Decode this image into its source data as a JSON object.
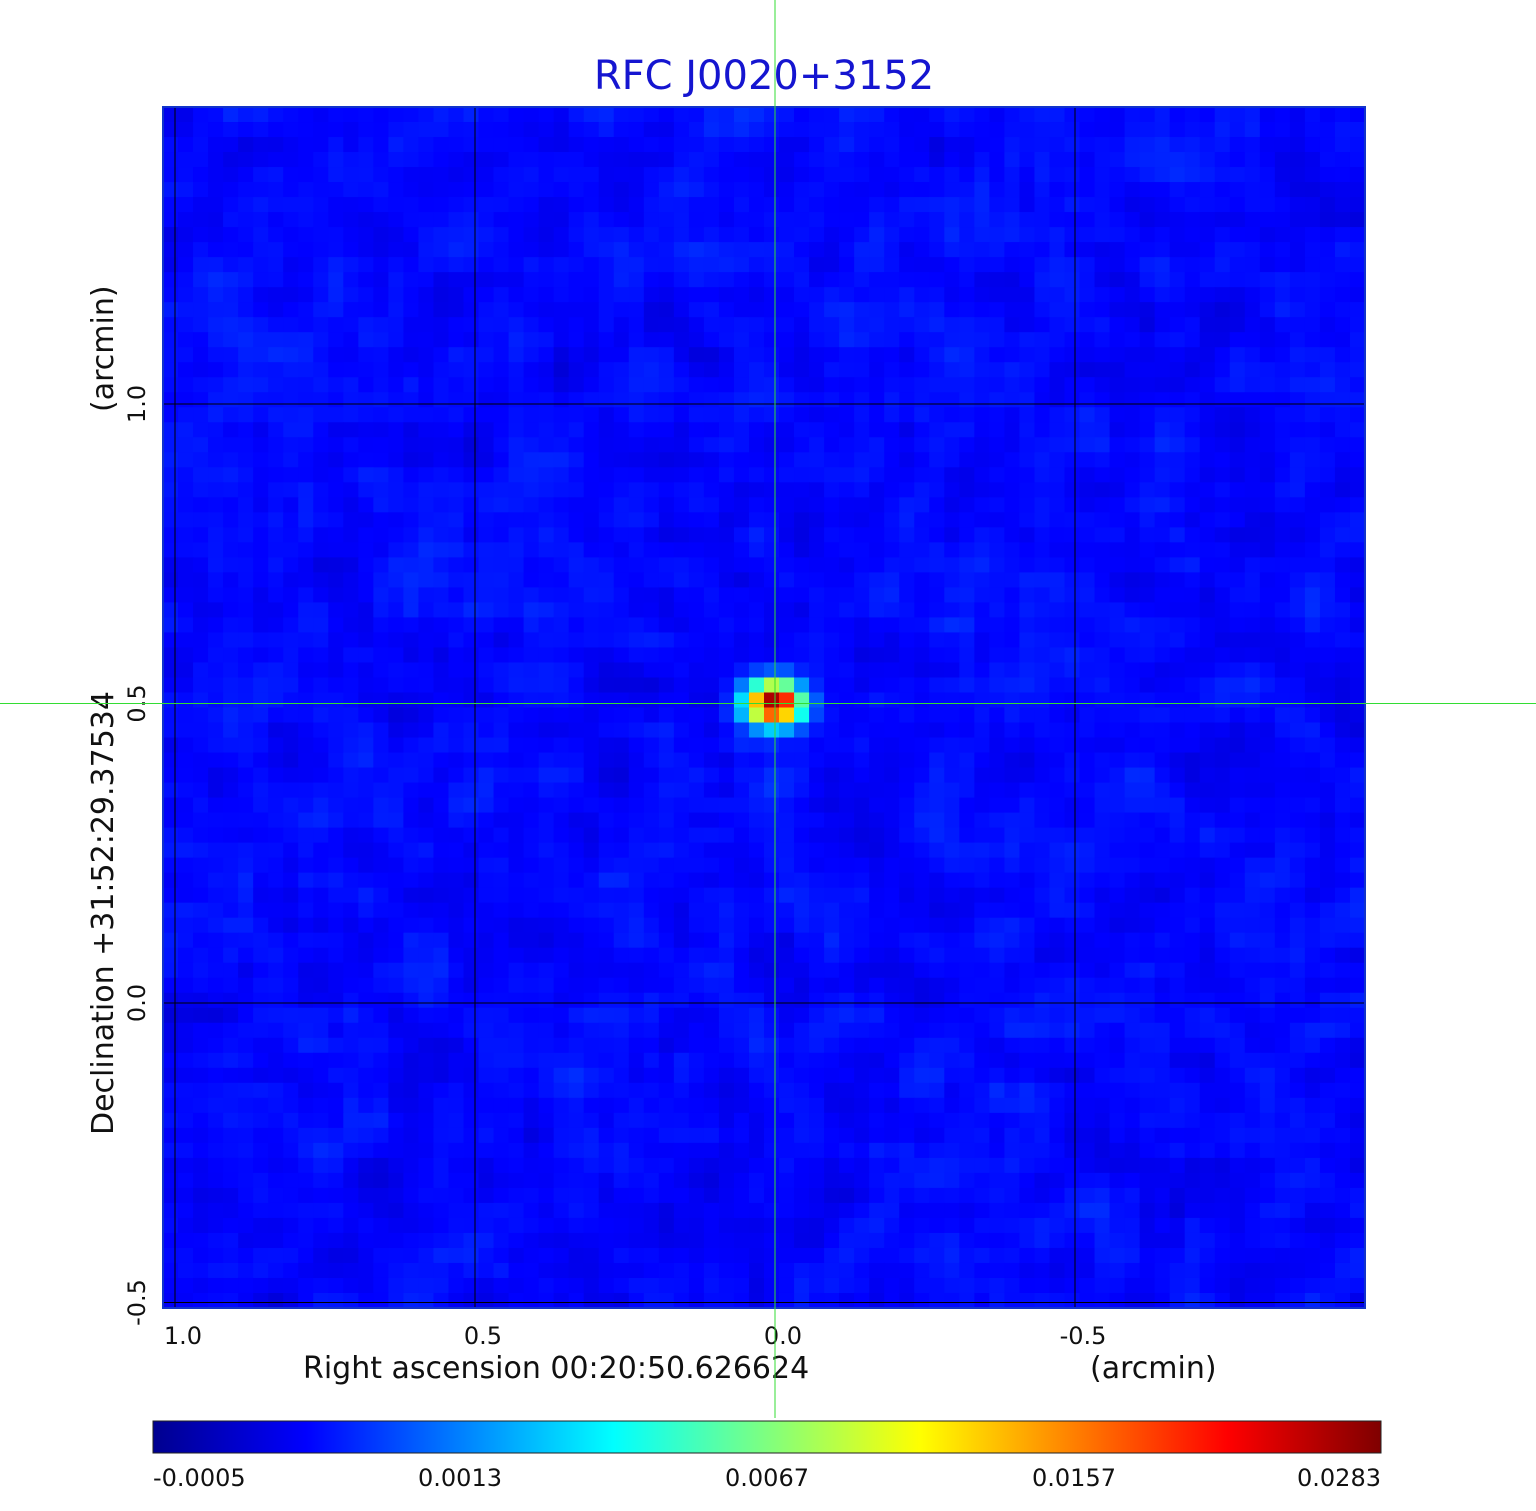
{
  "chart_data": {
    "type": "heatmap",
    "title": "RFC J0020+3152",
    "xlabel": "Right ascension  00:20:50.626624",
    "xlabel_unit": "(arcmin)",
    "ylabel": "Declination  +31:52:29.37534",
    "ylabel_unit": "(arcmin)",
    "x_ticks": [
      {
        "value": 1.0,
        "label": "1.0"
      },
      {
        "value": 0.5,
        "label": "0.5"
      },
      {
        "value": 0.0,
        "label": "0.0"
      },
      {
        "value": -0.5,
        "label": "-0.5"
      }
    ],
    "y_ticks": [
      {
        "value": 1.0,
        "label": "1.0"
      },
      {
        "value": 0.5,
        "label": "0.5"
      },
      {
        "value": 0.0,
        "label": "0.0"
      },
      {
        "value": -0.5,
        "label": "-0.5"
      }
    ],
    "xlim": [
      1.0,
      -1.0
    ],
    "ylim": [
      -0.5,
      1.5
    ],
    "grid": true,
    "source": {
      "x": 0.0,
      "y": 0.5,
      "peak": 0.0283
    },
    "crosshair": {
      "x": 0.0,
      "y": 0.5,
      "color": "#33dd33"
    },
    "colorbar": {
      "scale": "nonlinear",
      "tick_labels": [
        "-0.0005",
        "0.0013",
        "0.0067",
        "0.0157",
        "0.0283"
      ],
      "tick_values": [
        -0.0005,
        0.0013,
        0.0067,
        0.0157,
        0.0283
      ],
      "colormap": "jet"
    }
  },
  "colors": {
    "title": "#1515d0",
    "grid": "#000000",
    "crosshair": "#33dd33",
    "background_noise": "#1a4ef0"
  }
}
